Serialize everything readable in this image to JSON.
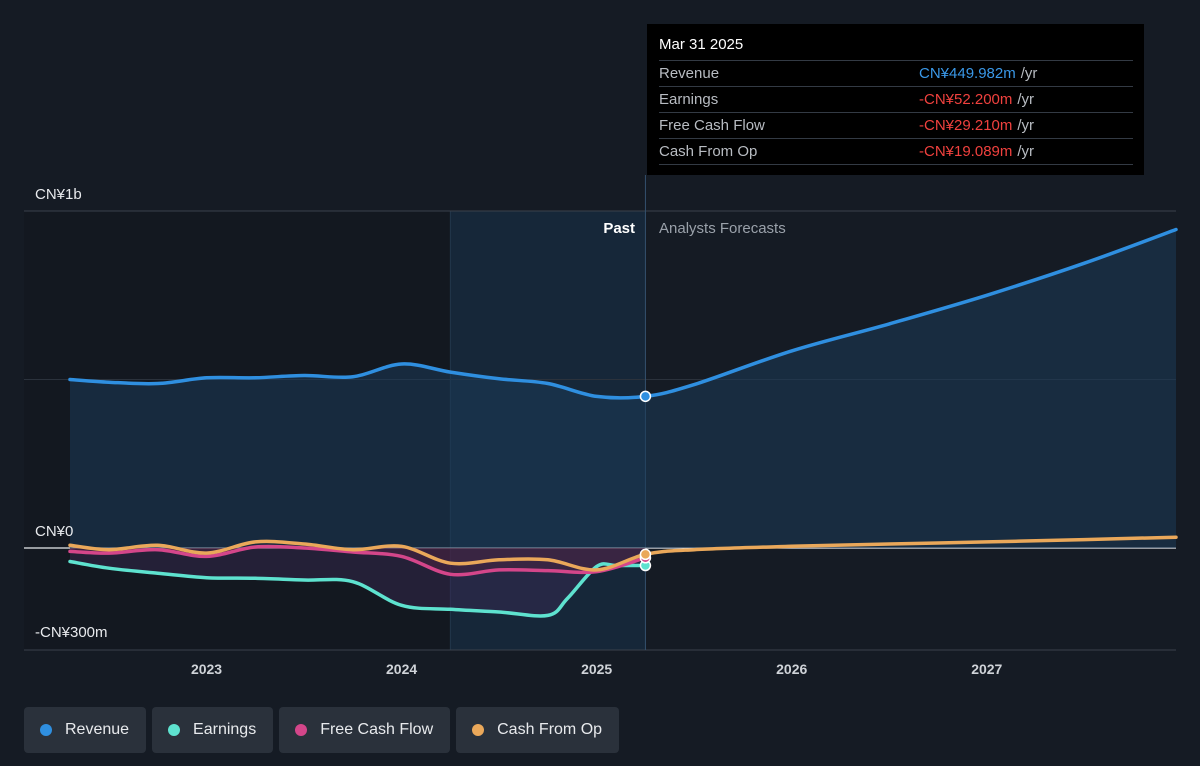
{
  "chart_data": {
    "type": "line",
    "y_unit_labels": {
      "top": "CN¥1b",
      "zero": "CN¥0",
      "bottom": "-CN¥300m"
    },
    "ylim": [
      -300,
      1000
    ],
    "xlim": [
      2022.3,
      2027.97
    ],
    "x_ticks": [
      {
        "value": 2023,
        "label": "2023"
      },
      {
        "value": 2024,
        "label": "2024"
      },
      {
        "value": 2025,
        "label": "2025"
      },
      {
        "value": 2026,
        "label": "2026"
      },
      {
        "value": 2027,
        "label": "2027"
      }
    ],
    "past_label": "Past",
    "forecast_label": "Analysts Forecasts",
    "forecast_start": 2025.25,
    "highlight_start": 2024.25,
    "series": [
      {
        "key": "revenue",
        "name": "Revenue",
        "color": "#2f8fe0",
        "x": [
          2022.3,
          2022.5,
          2022.75,
          2023.0,
          2023.25,
          2023.5,
          2023.75,
          2024.0,
          2024.25,
          2024.5,
          2024.75,
          2025.0,
          2025.25,
          2025.5,
          2026.0,
          2026.5,
          2027.0,
          2027.5,
          2027.97
        ],
        "y": [
          500,
          492,
          488,
          505,
          505,
          512,
          508,
          546,
          522,
          502,
          488,
          450,
          450,
          485,
          585,
          665,
          750,
          845,
          945
        ]
      },
      {
        "key": "earnings",
        "name": "Earnings",
        "color": "#5ee2cf",
        "x": [
          2022.3,
          2022.5,
          2022.75,
          2023.0,
          2023.25,
          2023.5,
          2023.75,
          2024.0,
          2024.25,
          2024.5,
          2024.75,
          2024.85,
          2025.0,
          2025.1,
          2025.25
        ],
        "y": [
          -40,
          -60,
          -75,
          -88,
          -90,
          -95,
          -100,
          -170,
          -182,
          -190,
          -200,
          -150,
          -55,
          -52,
          -52
        ]
      },
      {
        "key": "fcf",
        "name": "Free Cash Flow",
        "color": "#d4468a",
        "x": [
          2022.3,
          2022.5,
          2022.75,
          2023.0,
          2023.25,
          2023.5,
          2023.75,
          2024.0,
          2024.25,
          2024.5,
          2024.75,
          2025.0,
          2025.25
        ],
        "y": [
          -10,
          -15,
          -5,
          -25,
          3,
          0,
          -12,
          -25,
          -78,
          -65,
          -67,
          -70,
          -29
        ]
      },
      {
        "key": "cfo",
        "name": "Cash From Op",
        "color": "#eaa85a",
        "x": [
          2022.3,
          2022.5,
          2022.75,
          2023.0,
          2023.25,
          2023.5,
          2023.75,
          2024.0,
          2024.25,
          2024.5,
          2024.75,
          2025.0,
          2025.25,
          2025.5,
          2026.0,
          2026.5,
          2027.0,
          2027.5,
          2027.97
        ],
        "y": [
          8,
          -5,
          8,
          -15,
          18,
          12,
          -5,
          5,
          -45,
          -35,
          -35,
          -65,
          -19,
          -5,
          5,
          12,
          18,
          25,
          32
        ]
      }
    ],
    "highlight_point_x": 2025.25
  },
  "tooltip": {
    "date": "Mar 31 2025",
    "rows": [
      {
        "name": "Revenue",
        "value": "CN¥449.982m",
        "unit": "/yr",
        "negative": false
      },
      {
        "name": "Earnings",
        "value": "-CN¥52.200m",
        "unit": "/yr",
        "negative": true
      },
      {
        "name": "Free Cash Flow",
        "value": "-CN¥29.210m",
        "unit": "/yr",
        "negative": true
      },
      {
        "name": "Cash From Op",
        "value": "-CN¥19.089m",
        "unit": "/yr",
        "negative": true
      }
    ]
  },
  "legend": [
    {
      "label": "Revenue",
      "color": "#2f8fe0"
    },
    {
      "label": "Earnings",
      "color": "#5ee2cf"
    },
    {
      "label": "Free Cash Flow",
      "color": "#d4468a"
    },
    {
      "label": "Cash From Op",
      "color": "#eaa85a"
    }
  ]
}
